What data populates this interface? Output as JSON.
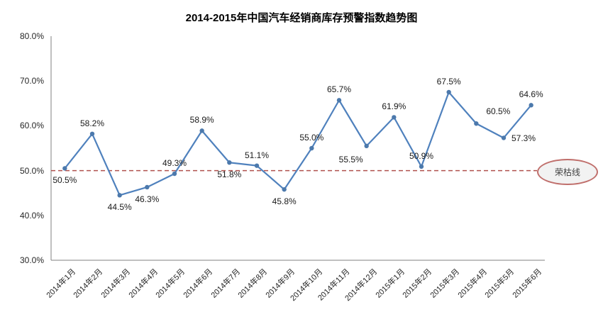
{
  "title": "2014-2015年中国汽车经销商库存预警指数趋势图",
  "chart_data": {
    "type": "line",
    "title": "2014-2015年中国汽车经销商库存预警指数趋势图",
    "categories": [
      "2014年1月",
      "2014年2月",
      "2014年3月",
      "2014年4月",
      "2014年5月",
      "2014年6月",
      "2014年7月",
      "2014年8月",
      "2014年9月",
      "2014年10月",
      "2014年11月",
      "2014年12月",
      "2015年1月",
      "2015年2月",
      "2015年3月",
      "2015年4月",
      "2015年5月",
      "2015年6月"
    ],
    "values": [
      50.5,
      58.2,
      44.5,
      46.3,
      49.3,
      58.9,
      51.8,
      51.1,
      45.8,
      55.0,
      65.7,
      55.5,
      61.9,
      50.9,
      67.5,
      60.5,
      57.3,
      64.6
    ],
    "point_labels": [
      "50.5%",
      "58.2%",
      "44.5%",
      "46.3%",
      "49.3%",
      "58.9%",
      "51.8%",
      "51.1%",
      "45.8%",
      "55.0%",
      "65.7%",
      "55.5%",
      "61.9%",
      "50.9%",
      "67.5%",
      "60.5%",
      "57.3%",
      "64.6%"
    ],
    "label_placements": [
      "below",
      "above",
      "below",
      "below",
      "above",
      "above",
      "below",
      "above",
      "below",
      "above",
      "above",
      "below-left",
      "above",
      "above",
      "above",
      "above-right",
      "right",
      "above"
    ],
    "y_ticks": [
      "80.0%",
      "70.0%",
      "60.0%",
      "50.0%",
      "40.0%",
      "30.0%"
    ],
    "y_tick_values": [
      80,
      70,
      60,
      50,
      40,
      30
    ],
    "ylim": [
      30,
      80
    ],
    "xlabel": "",
    "ylabel": "",
    "grid": false,
    "legend": "none",
    "reference_line": {
      "value": 50,
      "label": "荣枯线"
    },
    "colors": {
      "line": "#4F81BD",
      "marker": "#4C79AC",
      "axis": "#808080",
      "reference": "#B0524E",
      "annotation_border": "#C06F6C",
      "annotation_fill": "#F2F2F2"
    }
  }
}
